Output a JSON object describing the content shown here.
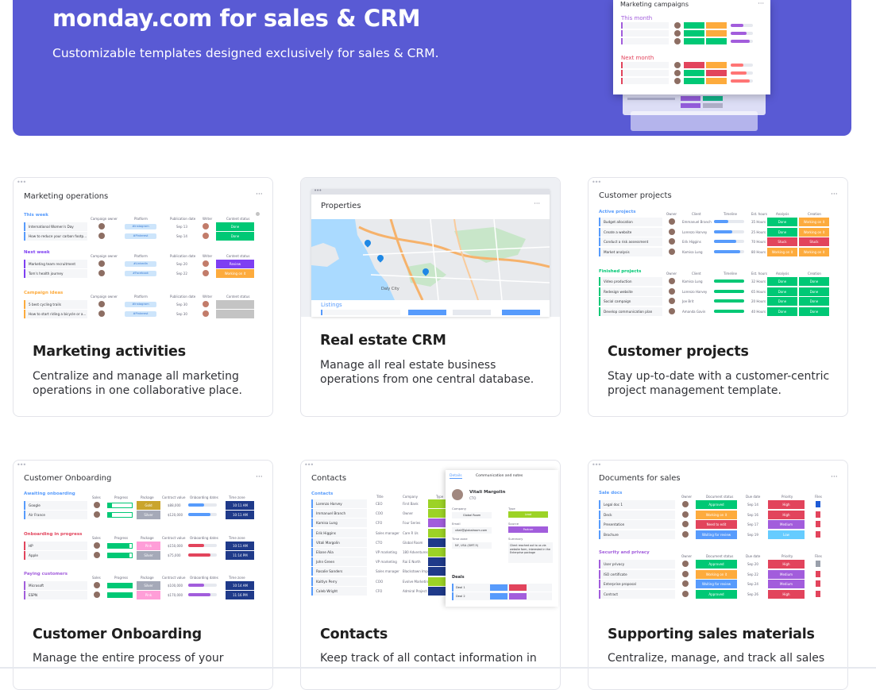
{
  "hero": {
    "title": "monday.com for sales & CRM",
    "subtitle": "Customizable templates designed exclusively for sales & CRM.",
    "preview_title": "Marketing campaigns",
    "preview_group1": "This month",
    "preview_group2": "Next month"
  },
  "cards": [
    {
      "title": "Marketing activities",
      "desc": "Centralize and manage all marketing operations in one collaborative place."
    },
    {
      "title": "Real estate CRM",
      "desc": "Manage all real estate business operations from one central database."
    },
    {
      "title": "Customer projects",
      "desc": "Stay up-to-date with a customer-centric project management template."
    },
    {
      "title": "Customer Onboarding",
      "desc": "Manage the entire process of your"
    },
    {
      "title": "Contacts",
      "desc": "Keep track of all contact information in"
    },
    {
      "title": "Supporting sales materials",
      "desc": "Centralize, manage, and track all sales"
    }
  ],
  "mk": {
    "board": "Marketing operations",
    "cols": [
      "Campaign owner",
      "Platform",
      "Publication date",
      "Writer",
      "Content status"
    ],
    "g1": "This week",
    "g2": "Next week",
    "g3": "Campaign ideas",
    "rows": [
      {
        "name": "International Women's Day",
        "platform": "#Instagram",
        "date": "Sep 13",
        "status": "Done"
      },
      {
        "name": "How to reduce your carbon footp...",
        "platform": "#Pinterest",
        "date": "Sep 14",
        "status": "Done"
      },
      {
        "name": "Marketing team recruitment",
        "platform": "#LinkedIn",
        "date": "Sep 20",
        "status": "Review"
      },
      {
        "name": "Tom's health journey",
        "platform": "#Facebook",
        "date": "Sep 22",
        "status": "Working on it"
      },
      {
        "name": "5 best cycling trails",
        "platform": "#Instagram",
        "date": "Sep 30",
        "status": ""
      },
      {
        "name": "How to start riding a bicycle or a...",
        "platform": "#Pinterest",
        "date": "Sep 30",
        "status": ""
      }
    ]
  },
  "re": {
    "board": "Properties",
    "listings": "Listings",
    "city": "Daly City"
  },
  "cp": {
    "board": "Customer projects",
    "cols": [
      "Owner",
      "Client",
      "Timeline",
      "Est. hours",
      "Analysis",
      "Creation"
    ],
    "g1": "Active projects",
    "g2": "Finished projects",
    "rows": [
      {
        "name": "Budget allocation",
        "client": "Emmanuel Branch",
        "hours": "35 Hours",
        "a": "Done",
        "c": "Working on it"
      },
      {
        "name": "Create a website",
        "client": "Lorenzo Harvey",
        "hours": "25 Hours",
        "a": "Done",
        "c": "Working on it"
      },
      {
        "name": "Conduct a risk assessment",
        "client": "Erik Higgins",
        "hours": "70 Hours",
        "a": "Stuck",
        "c": "Stuck"
      },
      {
        "name": "Market analysis",
        "client": "Kamisa Lung",
        "hours": "80 Hours",
        "a": "Working on it",
        "c": "Working on it"
      },
      {
        "name": "Video production",
        "client": "Kamisa Lung",
        "hours": "32 Hours",
        "a": "Done",
        "c": "Done"
      },
      {
        "name": "Redesign website",
        "client": "Lorenzo Harvey",
        "hours": "65 Hours",
        "a": "Done",
        "c": "Done"
      },
      {
        "name": "Social campaign",
        "client": "Joe Brit",
        "hours": "20 Hours",
        "a": "Done",
        "c": "Done"
      },
      {
        "name": "Develop communication plan",
        "client": "Amanda Gavin",
        "hours": "40 Hours",
        "a": "Done",
        "c": "Done"
      }
    ]
  },
  "co": {
    "board": "Customer Onboarding",
    "cols": [
      "Sales",
      "Progress",
      "Package",
      "Contract value",
      "Onboarding dates",
      "Time zone"
    ],
    "g1": "Awaiting onboarding",
    "g2": "Onboarding in progress",
    "g3": "Paying customers",
    "rows": [
      {
        "name": "Google",
        "pkg": "Gold",
        "val": "$88,000",
        "tz": "10:11 AM"
      },
      {
        "name": "Air France",
        "pkg": "Silver",
        "val": "$120,000",
        "tz": "10:11 AM"
      },
      {
        "name": "HP",
        "pkg": "Pink",
        "val": "$150,000",
        "tz": "10:11 AM"
      },
      {
        "name": "Apple",
        "pkg": "Silver",
        "val": "$75,000",
        "tz": "11:14 PM"
      },
      {
        "name": "Microsoft",
        "pkg": "Silver",
        "val": "$100,000",
        "tz": "10:14 AM"
      },
      {
        "name": "ESPN",
        "pkg": "Pink",
        "val": "$170,000",
        "tz": "11:16 PM"
      }
    ]
  },
  "ct": {
    "board": "Contacts",
    "group": "Contacts",
    "cols": [
      "Title",
      "Company",
      "Type"
    ],
    "rows": [
      {
        "name": "Lorenzo Harvey",
        "title": "CEO",
        "company": "First Bank"
      },
      {
        "name": "Immanuel Branch",
        "title": "COO",
        "company": "Owner"
      },
      {
        "name": "Kamisa Lung",
        "title": "CFO",
        "company": "Four Series"
      },
      {
        "name": "Erik Higgins",
        "title": "Sales manager",
        "company": "Care R Us"
      },
      {
        "name": "Vitali Margolin",
        "title": "CTO",
        "company": "Global Room"
      },
      {
        "name": "Eliane Alia",
        "title": "VP marketing",
        "company": "180 Adventures"
      },
      {
        "name": "John Green",
        "title": "VP marketing",
        "company": "Rai E North"
      },
      {
        "name": "Rosalie Sanders",
        "title": "Sales manager",
        "company": "Blackstown Imports"
      },
      {
        "name": "Kaitlyn Perry",
        "title": "COO",
        "company": "Evolve Marketing Inc."
      },
      {
        "name": "Caleb Wright",
        "title": "CFO",
        "company": "Admiral Project & Co"
      }
    ],
    "panel": {
      "tab1": "Details",
      "tab2": "Communication and notes",
      "person": "Vitali Margolin",
      "role": "CTO",
      "company_label": "Company",
      "company": "Global Room",
      "type_label": "Type",
      "type": "Lead",
      "email_label": "Email",
      "email": "vitali@globalroom.com",
      "source_label": "Source",
      "source": "Partner",
      "tz_label": "Time zone",
      "tz": "NY, USA (GMT-5)",
      "summary_label": "Summary",
      "summary": "Client reached out to us via website form, interested in the Enterprise package",
      "deals": "Deals",
      "deal1": "Deal 1",
      "deal2": "Deal 2"
    }
  },
  "sm": {
    "board": "Documents for sales",
    "cols": [
      "Owner",
      "Document status",
      "Due date",
      "Priority",
      "Files"
    ],
    "g1": "Sale docs",
    "g2": "Security and privacy",
    "rows": [
      {
        "name": "Legal doc 1",
        "status": "Approved",
        "date": "Sep 14",
        "prio": "High"
      },
      {
        "name": "Deck",
        "status": "Working on it",
        "date": "Sep 16",
        "prio": "High"
      },
      {
        "name": "Presentation",
        "status": "Need to edit",
        "date": "Sep 17",
        "prio": "Medium"
      },
      {
        "name": "Brochure",
        "status": "Waiting for review",
        "date": "Sep 19",
        "prio": "Low"
      },
      {
        "name": "User privacy",
        "status": "Approved",
        "date": "Sep 20",
        "prio": "High"
      },
      {
        "name": "ISO certificate",
        "status": "Working on it",
        "date": "Sep 22",
        "prio": "Medium"
      },
      {
        "name": "Enterprise proposal",
        "status": "Waiting for review",
        "date": "Sep 24",
        "prio": "Medium"
      },
      {
        "name": "Contract",
        "status": "Approved",
        "date": "Sep 26",
        "prio": "High"
      }
    ]
  }
}
